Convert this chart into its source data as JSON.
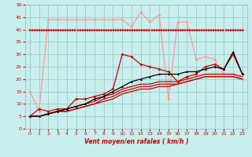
{
  "title": "",
  "xlabel": "Vent moyen/en rafales ( km/h )",
  "ylabel": "",
  "xlim": [
    -0.5,
    23.5
  ],
  "ylim": [
    0,
    50
  ],
  "xticks": [
    0,
    1,
    2,
    3,
    4,
    5,
    6,
    7,
    8,
    9,
    10,
    11,
    12,
    13,
    14,
    15,
    16,
    17,
    18,
    19,
    20,
    21,
    22,
    23
  ],
  "yticks": [
    0,
    5,
    10,
    15,
    20,
    25,
    30,
    35,
    40,
    45,
    50
  ],
  "bg_color": "#c8eeed",
  "grid_color": "#99cccc",
  "series": [
    {
      "name": "light_pink_flat",
      "color": "#ff9999",
      "lw": 0.9,
      "marker": "D",
      "ms": 2.0,
      "x": [
        0,
        1,
        2,
        3,
        4,
        5,
        6,
        7,
        8,
        9,
        10,
        11,
        12,
        13,
        14,
        15,
        16,
        17,
        18,
        19,
        20,
        21,
        22,
        23
      ],
      "y": [
        15,
        7,
        44,
        44,
        44,
        44,
        44,
        44,
        44,
        44,
        44,
        41,
        47,
        43,
        46,
        12,
        43,
        43,
        28,
        29,
        28,
        22,
        22,
        20
      ]
    },
    {
      "name": "dark_red_noisy",
      "color": "#cc0000",
      "lw": 0.9,
      "marker": "D",
      "ms": 2.0,
      "x": [
        0,
        1,
        2,
        3,
        4,
        5,
        6,
        7,
        8,
        9,
        10,
        11,
        12,
        13,
        14,
        15,
        16,
        17,
        18,
        19,
        20,
        21,
        22,
        23
      ],
      "y": [
        5,
        8,
        7,
        8,
        8,
        12,
        12,
        13,
        14,
        16,
        30,
        29,
        26,
        25,
        24,
        23,
        19,
        21,
        22,
        25,
        26,
        24,
        30,
        22
      ]
    },
    {
      "name": "dark_red_smooth1",
      "color": "#cc0000",
      "lw": 0.9,
      "marker": null,
      "ms": 0,
      "x": [
        0,
        1,
        2,
        3,
        4,
        5,
        6,
        7,
        8,
        9,
        10,
        11,
        12,
        13,
        14,
        15,
        16,
        17,
        18,
        19,
        20,
        21,
        22,
        23
      ],
      "y": [
        5,
        5,
        6,
        7,
        8,
        9,
        10,
        11,
        13,
        14,
        16,
        17,
        18,
        18,
        19,
        19,
        19,
        20,
        21,
        22,
        22,
        22,
        22,
        21
      ]
    },
    {
      "name": "dark_red_smooth2",
      "color": "#cc0000",
      "lw": 0.9,
      "marker": null,
      "ms": 0,
      "x": [
        0,
        1,
        2,
        3,
        4,
        5,
        6,
        7,
        8,
        9,
        10,
        11,
        12,
        13,
        14,
        15,
        16,
        17,
        18,
        19,
        20,
        21,
        22,
        23
      ],
      "y": [
        5,
        5,
        6,
        7,
        7,
        8,
        9,
        10,
        12,
        13,
        15,
        16,
        17,
        17,
        18,
        18,
        18,
        19,
        20,
        21,
        21,
        21,
        21,
        20
      ]
    },
    {
      "name": "dark_red_smooth3",
      "color": "#cc0000",
      "lw": 0.9,
      "marker": null,
      "ms": 0,
      "x": [
        0,
        1,
        2,
        3,
        4,
        5,
        6,
        7,
        8,
        9,
        10,
        11,
        12,
        13,
        14,
        15,
        16,
        17,
        18,
        19,
        20,
        21,
        22,
        23
      ],
      "y": [
        5,
        5,
        6,
        7,
        7,
        8,
        9,
        10,
        11,
        12,
        14,
        15,
        16,
        16,
        17,
        17,
        18,
        19,
        20,
        21,
        21,
        21,
        21,
        20
      ]
    },
    {
      "name": "black_triangle",
      "color": "#000000",
      "lw": 0.9,
      "marker": "^",
      "ms": 2.0,
      "x": [
        0,
        1,
        2,
        3,
        4,
        5,
        6,
        7,
        8,
        9,
        10,
        11,
        12,
        13,
        14,
        15,
        16,
        17,
        18,
        19,
        20,
        21,
        22,
        23
      ],
      "y": [
        5,
        5,
        6,
        7,
        8,
        9,
        10,
        12,
        13,
        15,
        17,
        19,
        20,
        21,
        22,
        22,
        22,
        23,
        23,
        24,
        25,
        24,
        31,
        22
      ]
    }
  ],
  "arrow_color": "#cc0000",
  "xlabel_color": "#cc0000",
  "tick_color": "#cc0000"
}
